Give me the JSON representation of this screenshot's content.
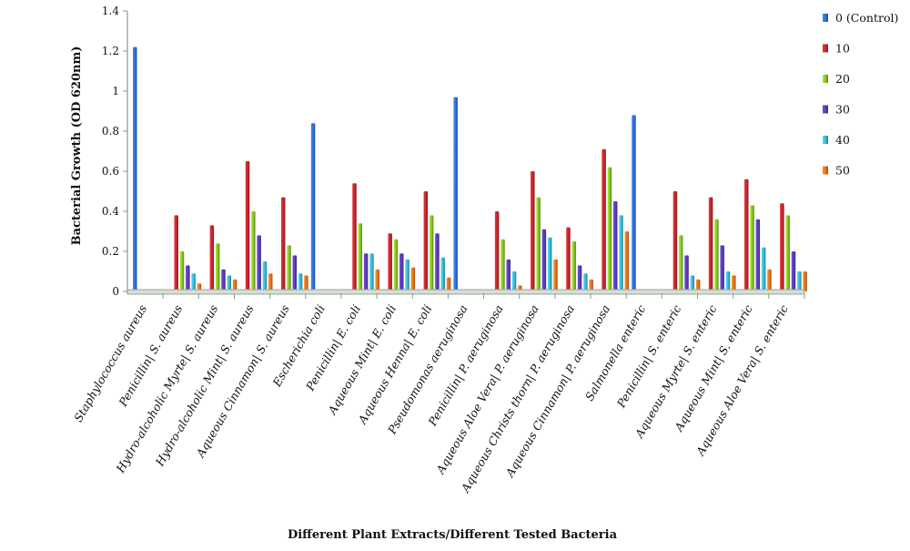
{
  "chart_data": {
    "type": "bar",
    "xlabel": "Different Plant Extracts/Different Tested Bacteria",
    "ylabel": "Bacterial Growth (OD 620nm)",
    "ylim": [
      0,
      1.4
    ],
    "yticks": [
      "0",
      "0.2",
      "0.4",
      "0.6",
      "0.8",
      "1",
      "1.2",
      "1.4"
    ],
    "grid": false,
    "legend_position": "right",
    "categories": [
      "Staphylococcus aureus",
      "Penicillin| S. aureus",
      "Hydro-alcoholic Myrte| S. aureus",
      "Hydro-alcoholic Mint| S. aureus",
      "Aqueous Cinnamon| S. aureus",
      "Escherichia coli",
      "Penicillin| E. coli",
      "Aqueous Mint| E. coli",
      "Aqueous Henna| E. coli",
      "Pseudomonas aeruginosa",
      "Penicillin| P. aeruginosa",
      "Aqueous Aloe Vera| P. aeruginosa",
      "Aqueous Christs thorn| P. aeruginosa",
      "Aqueous Cinnamon| P. aeruginosa",
      "Salmonella enteric",
      "Penicillin| S. enteric",
      "Aqueous Myrte| S. enteric",
      "Aqueous Mint| S. enteric",
      "Aqueous Aloe Vera| S. enteric"
    ],
    "series": [
      {
        "name": "0 (Control)",
        "color": "#2f6fd6",
        "values": [
          1.22,
          0,
          0,
          0,
          0,
          0.84,
          0,
          0,
          0,
          0.97,
          0,
          0,
          0,
          0,
          0.88,
          0,
          0,
          0,
          0
        ]
      },
      {
        "name": "10",
        "color": "#c0282d",
        "values": [
          0,
          0.38,
          0.33,
          0.65,
          0.47,
          0,
          0.54,
          0.29,
          0.5,
          0,
          0.4,
          0.6,
          0.32,
          0.71,
          0,
          0.5,
          0.47,
          0.56,
          0.44
        ]
      },
      {
        "name": "20",
        "color": "#86c228",
        "values": [
          0,
          0.2,
          0.24,
          0.4,
          0.23,
          0,
          0.34,
          0.26,
          0.38,
          0,
          0.26,
          0.47,
          0.25,
          0.62,
          0,
          0.28,
          0.36,
          0.43,
          0.38
        ]
      },
      {
        "name": "30",
        "color": "#5a3cb8",
        "values": [
          0,
          0.13,
          0.11,
          0.28,
          0.18,
          0,
          0.19,
          0.19,
          0.29,
          0,
          0.16,
          0.31,
          0.13,
          0.45,
          0,
          0.18,
          0.23,
          0.36,
          0.2
        ]
      },
      {
        "name": "40",
        "color": "#3cb6d0",
        "values": [
          0,
          0.09,
          0.08,
          0.15,
          0.09,
          0,
          0.19,
          0.16,
          0.17,
          0,
          0.1,
          0.27,
          0.09,
          0.38,
          0,
          0.08,
          0.1,
          0.22,
          0.1
        ]
      },
      {
        "name": "50",
        "color": "#e8731e",
        "values": [
          0,
          0.04,
          0.06,
          0.09,
          0.08,
          0,
          0.11,
          0.12,
          0.07,
          0,
          0.03,
          0.16,
          0.06,
          0.3,
          0,
          0.06,
          0.08,
          0.11,
          0.1
        ]
      }
    ]
  }
}
